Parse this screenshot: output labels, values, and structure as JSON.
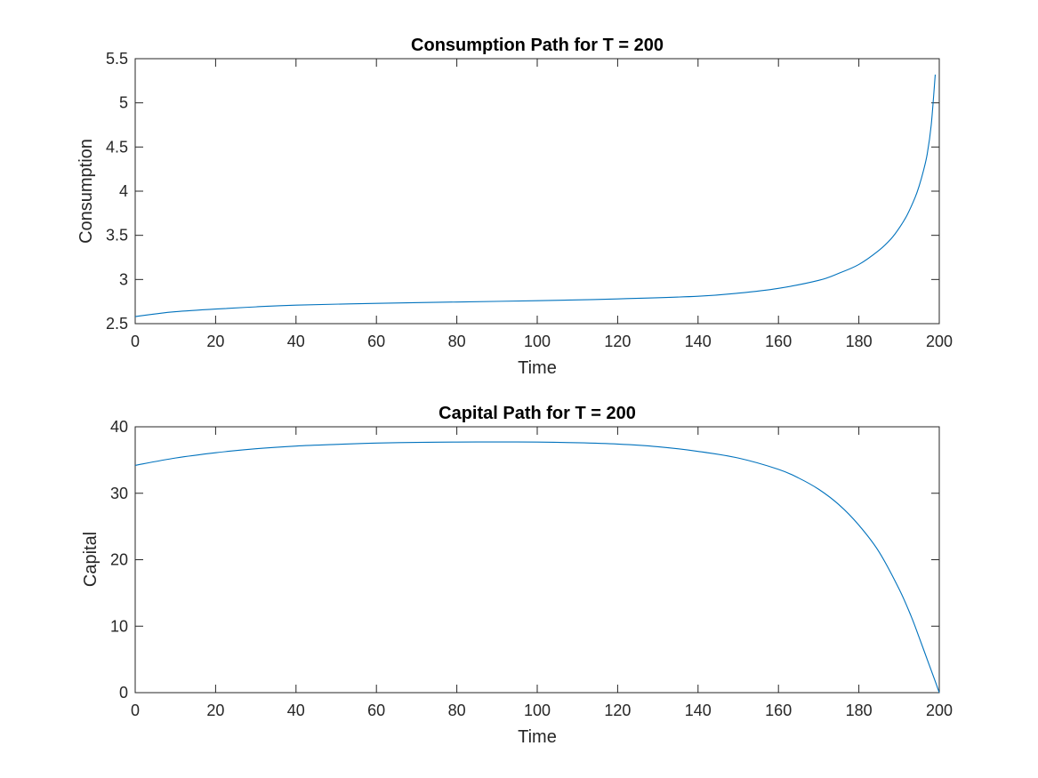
{
  "colors": {
    "line": "#0072BD",
    "axis": "#262626"
  },
  "chart_data": [
    {
      "type": "line",
      "title": "Consumption Path for T = 200",
      "xlabel": "Time",
      "ylabel": "Consumption",
      "xlim": [
        0,
        200
      ],
      "ylim": [
        2.5,
        5.5
      ],
      "xticks": [
        "0",
        "20",
        "40",
        "60",
        "80",
        "100",
        "120",
        "140",
        "160",
        "180",
        "200"
      ],
      "yticks": [
        "2.5",
        "3",
        "3.5",
        "4",
        "4.5",
        "5",
        "5.5"
      ],
      "grid": false,
      "series": [
        {
          "x": [
            0,
            5,
            10,
            20,
            30,
            40,
            60,
            80,
            100,
            120,
            140,
            150,
            160,
            170,
            175,
            180,
            185,
            188,
            190,
            192,
            194,
            195,
            196,
            197,
            198,
            199
          ],
          "y": [
            2.58,
            2.61,
            2.635,
            2.665,
            2.69,
            2.71,
            2.73,
            2.745,
            2.76,
            2.78,
            2.81,
            2.845,
            2.9,
            2.99,
            3.07,
            3.17,
            3.33,
            3.46,
            3.58,
            3.73,
            3.93,
            4.06,
            4.22,
            4.42,
            4.75,
            5.32
          ]
        }
      ]
    },
    {
      "type": "line",
      "title": "Capital Path for T = 200",
      "xlabel": "Time",
      "ylabel": "Capital",
      "xlim": [
        0,
        200
      ],
      "ylim": [
        0,
        40
      ],
      "xticks": [
        "0",
        "20",
        "40",
        "60",
        "80",
        "100",
        "120",
        "140",
        "160",
        "180",
        "200"
      ],
      "yticks": [
        "0",
        "10",
        "20",
        "30",
        "40"
      ],
      "grid": false,
      "series": [
        {
          "x": [
            0,
            10,
            20,
            30,
            40,
            50,
            60,
            70,
            80,
            90,
            100,
            110,
            120,
            130,
            140,
            150,
            160,
            165,
            170,
            175,
            180,
            185,
            190,
            193,
            195,
            197,
            199,
            200
          ],
          "y": [
            34.2,
            35.3,
            36.1,
            36.7,
            37.1,
            37.35,
            37.55,
            37.65,
            37.7,
            37.72,
            37.7,
            37.6,
            37.4,
            37.0,
            36.3,
            35.3,
            33.6,
            32.3,
            30.6,
            28.3,
            25.2,
            21.2,
            15.6,
            11.5,
            8.3,
            5.0,
            1.7,
            0.0
          ]
        }
      ]
    }
  ]
}
